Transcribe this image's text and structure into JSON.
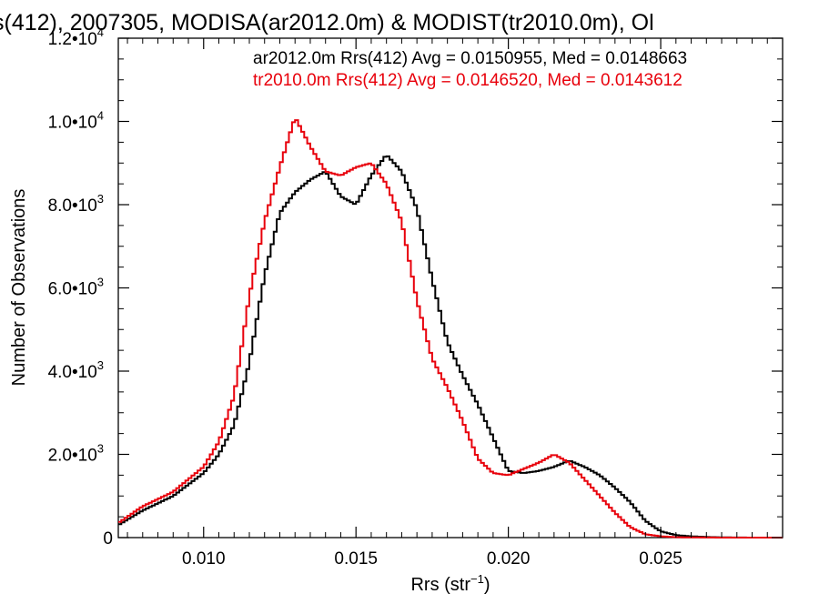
{
  "chart_data": {
    "type": "line",
    "title": "s(412), 2007305, MODISA(ar2012.0m) & MODIST(tr2010.0m), Ol",
    "xlabel": "Rrs (str",
    "xlabel_sup": "−1",
    "xlabel_close": ")",
    "ylabel": "Number of Observations",
    "xlim": [
      0.0072,
      0.029
    ],
    "ylim": [
      0,
      12000
    ],
    "grid": false,
    "legend_position": "top-right",
    "x_ticks": [
      {
        "value": 0.01,
        "label": "0.010"
      },
      {
        "value": 0.015,
        "label": "0.015"
      },
      {
        "value": 0.02,
        "label": "0.020"
      },
      {
        "value": 0.025,
        "label": "0.025"
      }
    ],
    "y_ticks": [
      {
        "value": 0,
        "mant": "0",
        "exp": ""
      },
      {
        "value": 2000,
        "mant": "2.0•10",
        "exp": "3"
      },
      {
        "value": 4000,
        "mant": "4.0•10",
        "exp": "3"
      },
      {
        "value": 6000,
        "mant": "6.0•10",
        "exp": "3"
      },
      {
        "value": 8000,
        "mant": "8.0•10",
        "exp": "3"
      },
      {
        "value": 10000,
        "mant": "1.0•10",
        "exp": "4"
      },
      {
        "value": 12000,
        "mant": "1.2•10",
        "exp": "4"
      }
    ],
    "legend": [
      {
        "text": "ar2012.0m Rrs(412) Avg = 0.0150955, Med = 0.0148663",
        "color": "#000000"
      },
      {
        "text": "tr2010.0m Rrs(412) Avg = 0.0146520, Med = 0.0143612",
        "color": "#e8000b"
      }
    ],
    "series": [
      {
        "color": "#000000",
        "x": [
          0.0072,
          0.008,
          0.009,
          0.01,
          0.0105,
          0.011,
          0.0115,
          0.012,
          0.0125,
          0.013,
          0.0135,
          0.014,
          0.0145,
          0.015,
          0.0155,
          0.016,
          0.0165,
          0.017,
          0.0175,
          0.018,
          0.0185,
          0.019,
          0.0195,
          0.02,
          0.0205,
          0.021,
          0.0215,
          0.022,
          0.0225,
          0.023,
          0.0235,
          0.024,
          0.0245,
          0.025,
          0.0255,
          0.026,
          0.0265,
          0.027,
          0.028,
          0.029
        ],
        "y": [
          300,
          650,
          1000,
          1550,
          2000,
          2700,
          4200,
          6300,
          7800,
          8300,
          8600,
          8800,
          8200,
          8000,
          8700,
          9200,
          8800,
          7900,
          6200,
          4700,
          3900,
          3200,
          2400,
          1600,
          1550,
          1600,
          1700,
          1850,
          1700,
          1500,
          1200,
          850,
          400,
          150,
          60,
          30,
          15,
          5,
          0,
          0
        ]
      },
      {
        "color": "#e8000b",
        "x": [
          0.0072,
          0.008,
          0.009,
          0.01,
          0.0105,
          0.011,
          0.0115,
          0.012,
          0.0125,
          0.013,
          0.0135,
          0.014,
          0.0145,
          0.015,
          0.0155,
          0.016,
          0.0165,
          0.017,
          0.0175,
          0.018,
          0.0185,
          0.019,
          0.0195,
          0.02,
          0.0205,
          0.021,
          0.0215,
          0.022,
          0.0225,
          0.023,
          0.0235,
          0.024,
          0.0245,
          0.025,
          0.0255,
          0.026,
          0.027,
          0.028,
          0.029
        ],
        "y": [
          350,
          750,
          1100,
          1700,
          2300,
          3400,
          5800,
          7600,
          8900,
          10100,
          9400,
          8800,
          8700,
          8900,
          9000,
          8500,
          7600,
          5700,
          4300,
          3600,
          2800,
          1900,
          1550,
          1500,
          1650,
          1800,
          2000,
          1800,
          1400,
          1000,
          600,
          250,
          80,
          30,
          10,
          5,
          0,
          0,
          0
        ]
      }
    ]
  }
}
